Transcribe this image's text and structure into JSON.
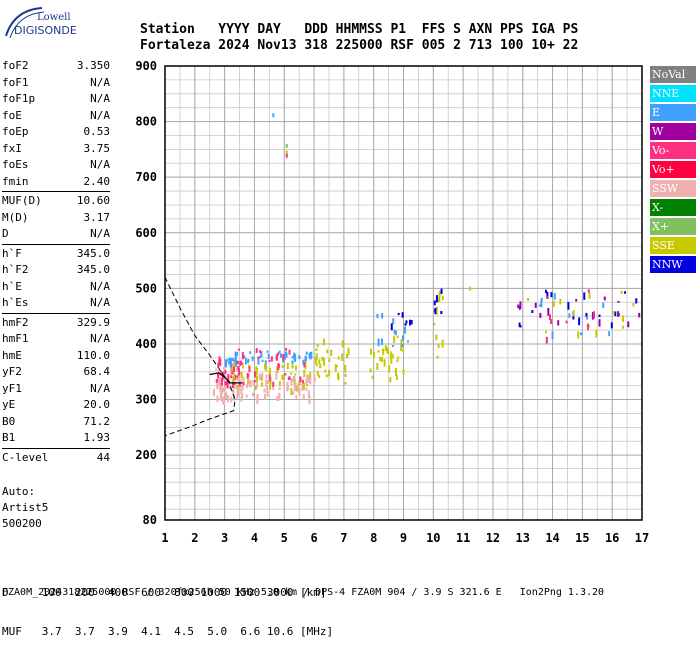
{
  "logo": {
    "line1": "Lowell",
    "line2": "DIGISONDE"
  },
  "header": {
    "line1": "Station   YYYY DAY   DDD HHMMSS P1  FFS S AXN PPS IGA PS",
    "line2": "Fortaleza 2024 Nov13 318 225000 RSF 005 2 713 100 10+ 22"
  },
  "params_group1": [
    {
      "name": "foF2",
      "value": "3.350"
    },
    {
      "name": "foF1",
      "value": "N/A"
    },
    {
      "name": "foF1p",
      "value": "N/A"
    },
    {
      "name": "foE",
      "value": "N/A"
    },
    {
      "name": "foEp",
      "value": "0.53"
    },
    {
      "name": "fxI",
      "value": "3.75"
    },
    {
      "name": "foEs",
      "value": "N/A"
    },
    {
      "name": "fmin",
      "value": "2.40"
    }
  ],
  "params_group2": [
    {
      "name": "MUF(D)",
      "value": "10.60"
    },
    {
      "name": "M(D)",
      "value": "3.17"
    },
    {
      "name": "D",
      "value": "N/A"
    }
  ],
  "params_group3": [
    {
      "name": "h`F",
      "value": "345.0"
    },
    {
      "name": "h`F2",
      "value": "345.0"
    },
    {
      "name": "h`E",
      "value": "N/A"
    },
    {
      "name": "h`Es",
      "value": "N/A"
    }
  ],
  "params_group4": [
    {
      "name": "hmF2",
      "value": "329.9"
    },
    {
      "name": "hmF1",
      "value": "N/A"
    },
    {
      "name": "hmE",
      "value": "110.0"
    },
    {
      "name": "yF2",
      "value": "68.4"
    },
    {
      "name": "yF1",
      "value": "N/A"
    },
    {
      "name": "yE",
      "value": "20.0"
    },
    {
      "name": "B0",
      "value": "71.2"
    },
    {
      "name": "B1",
      "value": "1.93"
    }
  ],
  "params_group5": [
    {
      "name": "C-level",
      "value": "44"
    }
  ],
  "auto": {
    "line1": "Auto:",
    "line2": "Artist5",
    "line3": "500200"
  },
  "legend": [
    {
      "label": "NoVal",
      "color": "#808080"
    },
    {
      "label": "NNE",
      "color": "#00e0ff"
    },
    {
      "label": "E",
      "color": "#40a0ff"
    },
    {
      "label": "W",
      "color": "#a000a0"
    },
    {
      "label": "Vo-",
      "color": "#ff3080"
    },
    {
      "label": "Vo+",
      "color": "#ff0040"
    },
    {
      "label": "SSW",
      "color": "#f0b0b0"
    },
    {
      "label": "X-",
      "color": "#008000"
    },
    {
      "label": "X+",
      "color": "#80c060"
    },
    {
      "label": "SSE",
      "color": "#c8c800"
    },
    {
      "label": "NNW",
      "color": "#0000e0"
    }
  ],
  "bottom": {
    "line1": "D     100  200  400  600  800 1000 1500 3000 [km]",
    "line2": "MUF   3.7  3.7  3.9  4.1  4.5  5.0  6.6 10.6 [MHz]"
  },
  "footer": "FZA0M_2024318225000.RSF / 320fx256h 50 kHz 5.0 km / DPS-4 FZA0M 904 / 3.9 S 321.6 E   Ion2Png 1.3.20",
  "chart_data": {
    "type": "scatter",
    "x_ticks": [
      "1",
      "2",
      "3",
      "4",
      "5",
      "6",
      "7",
      "8",
      "9",
      "10",
      "11",
      "12",
      "13",
      "14",
      "15",
      "16",
      "17"
    ],
    "y_ticks": [
      "80",
      "200",
      "300",
      "400",
      "500",
      "600",
      "700",
      "800",
      "900"
    ],
    "xlim": [
      1,
      17
    ],
    "ylim": [
      80,
      900
    ],
    "grid": true,
    "legend_position": "right",
    "x_unit_note": "frequency (MHz)",
    "y_unit_note": "virtual height (km)",
    "clusters": [
      {
        "x": [
          2.6,
          3.6
        ],
        "y": [
          300,
          360
        ],
        "color": "#f0b0b0",
        "n": 60
      },
      {
        "x": [
          2.5,
          3.5
        ],
        "y": [
          330,
          380
        ],
        "color": "#ff3080",
        "n": 30
      },
      {
        "x": [
          3.0,
          5.9
        ],
        "y": [
          370,
          390
        ],
        "color": "#40a0ff",
        "n": 45
      },
      {
        "x": [
          3.2,
          5.9
        ],
        "y": [
          320,
          370
        ],
        "color": "#c8c800",
        "n": 50
      },
      {
        "x": [
          3.5,
          6.0
        ],
        "y": [
          305,
          350
        ],
        "color": "#f0b0b0",
        "n": 55
      },
      {
        "x": [
          3.3,
          5.8
        ],
        "y": [
          330,
          400
        ],
        "color": "#ff3080",
        "n": 30
      },
      {
        "x": [
          6.0,
          7.2
        ],
        "y": [
          330,
          410
        ],
        "color": "#c8c800",
        "n": 30
      },
      {
        "x": [
          7.8,
          9.0
        ],
        "y": [
          340,
          420
        ],
        "color": "#c8c800",
        "n": 30
      },
      {
        "x": [
          8.0,
          9.2
        ],
        "y": [
          380,
          460
        ],
        "color": "#40a0ff",
        "n": 12
      },
      {
        "x": [
          8.5,
          9.3
        ],
        "y": [
          430,
          460
        ],
        "color": "#0000e0",
        "n": 8
      },
      {
        "x": [
          10.0,
          10.3
        ],
        "y": [
          370,
          500
        ],
        "color": "#c8c800",
        "n": 12
      },
      {
        "x": [
          10.0,
          10.3
        ],
        "y": [
          430,
          510
        ],
        "color": "#0000e0",
        "n": 6
      },
      {
        "x": [
          12.5,
          17.0
        ],
        "y": [
          430,
          500
        ],
        "color": "#0000e0",
        "n": 18
      },
      {
        "x": [
          12.8,
          17.0
        ],
        "y": [
          440,
          500
        ],
        "color": "#a000a0",
        "n": 14
      },
      {
        "x": [
          13.0,
          17.0
        ],
        "y": [
          420,
          500
        ],
        "color": "#c8c800",
        "n": 14
      },
      {
        "x": [
          13.5,
          16.0
        ],
        "y": [
          420,
          500
        ],
        "color": "#40a0ff",
        "n": 10
      },
      {
        "x": [
          13.5,
          15.5
        ],
        "y": [
          410,
          500
        ],
        "color": "#ff3080",
        "n": 8
      }
    ],
    "isolated_points": [
      {
        "x": 4.6,
        "y": 815,
        "color": "#40a0ff"
      },
      {
        "x": 5.05,
        "y": 760,
        "color": "#80c060"
      },
      {
        "x": 5.05,
        "y": 748,
        "color": "#c8c800"
      },
      {
        "x": 5.05,
        "y": 742,
        "color": "#ff3080"
      },
      {
        "x": 11.2,
        "y": 503,
        "color": "#c8c800"
      }
    ],
    "profile_dashed": [
      [
        1.0,
        520
      ],
      [
        1.5,
        465
      ],
      [
        2.0,
        415
      ],
      [
        2.5,
        380
      ],
      [
        2.95,
        345
      ],
      [
        3.15,
        330
      ],
      [
        3.35,
        300
      ],
      [
        3.3,
        280
      ],
      [
        2.5,
        265
      ],
      [
        1.8,
        250
      ],
      [
        1.0,
        235
      ]
    ],
    "profile_solid": [
      [
        2.5,
        345
      ],
      [
        2.8,
        348
      ],
      [
        3.0,
        340
      ],
      [
        3.2,
        330
      ],
      [
        3.4,
        330
      ],
      [
        3.6,
        330
      ]
    ]
  }
}
